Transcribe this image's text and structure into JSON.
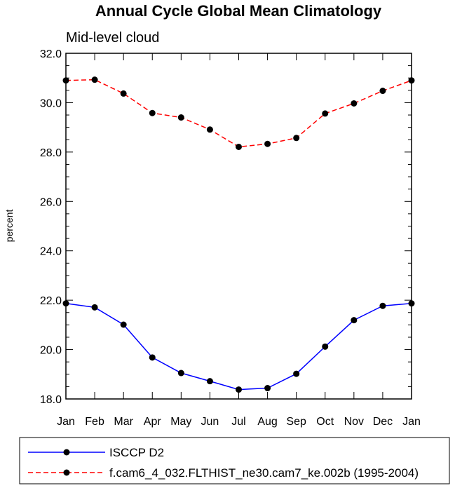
{
  "chart_data": {
    "type": "line",
    "title": "Annual Cycle Global Mean Climatology",
    "subtitle": "Mid-level cloud",
    "xlabel": "",
    "ylabel": "percent",
    "categories": [
      "Jan",
      "Feb",
      "Mar",
      "Apr",
      "May",
      "Jun",
      "Jul",
      "Aug",
      "Sep",
      "Oct",
      "Nov",
      "Dec",
      "Jan"
    ],
    "ylim": [
      18.0,
      32.0
    ],
    "yticks": [
      "18.0",
      "20.0",
      "22.0",
      "24.0",
      "26.0",
      "28.0",
      "30.0",
      "32.0"
    ],
    "grid": false,
    "legend_position": "bottom",
    "series": [
      {
        "name": "ISCCP D2",
        "color": "#0000ff",
        "line_style": "solid",
        "marker": "filled-circle",
        "values": [
          21.87,
          21.71,
          21.01,
          19.68,
          19.05,
          18.72,
          18.38,
          18.44,
          19.02,
          20.12,
          21.19,
          21.77,
          21.87
        ]
      },
      {
        "name": "f.cam6_4_032.FLTHIST_ne30.cam7_ke.002b (1995-2004)",
        "color": "#ff0000",
        "line_style": "dashed",
        "marker": "filled-circle",
        "values": [
          30.9,
          30.93,
          30.37,
          29.58,
          29.4,
          28.91,
          28.21,
          28.33,
          28.57,
          29.56,
          29.97,
          30.48,
          30.9
        ]
      }
    ]
  }
}
